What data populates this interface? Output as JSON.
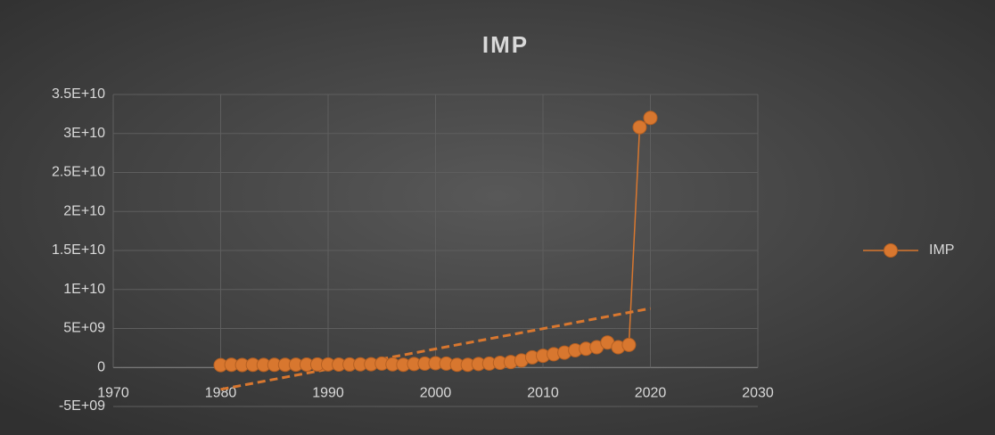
{
  "chart_data": {
    "type": "scatter",
    "title": "IMP",
    "series": [
      {
        "name": "IMP",
        "color": "#d8772f",
        "x": [
          1980,
          1981,
          1982,
          1983,
          1984,
          1985,
          1986,
          1987,
          1988,
          1989,
          1990,
          1991,
          1992,
          1993,
          1994,
          1995,
          1996,
          1997,
          1998,
          1999,
          2000,
          2001,
          2002,
          2003,
          2004,
          2005,
          2006,
          2007,
          2008,
          2009,
          2010,
          2011,
          2012,
          2013,
          2014,
          2015,
          2016,
          2017,
          2018,
          2019,
          2020
        ],
        "values": [
          300000000,
          350000000,
          320000000,
          350000000,
          330000000,
          340000000,
          350000000,
          360000000,
          370000000,
          380000000,
          390000000,
          370000000,
          380000000,
          400000000,
          420000000,
          500000000,
          400000000,
          350000000,
          450000000,
          500000000,
          550000000,
          500000000,
          350000000,
          350000000,
          450000000,
          500000000,
          600000000,
          700000000,
          900000000,
          1300000000,
          1500000000,
          1700000000,
          1900000000,
          2200000000,
          2400000000,
          2600000000,
          3200000000,
          2600000000,
          2900000000,
          30800000000,
          32000000000
        ]
      }
    ],
    "trendline": "linear",
    "xlim": [
      1970,
      2030
    ],
    "xticks": [
      1970,
      1980,
      1990,
      2000,
      2010,
      2020,
      2030
    ],
    "ylim": [
      -5000000000,
      35000000000
    ],
    "yticks": [
      {
        "value": -5000000000,
        "label": "-5E+09"
      },
      0,
      {
        "value": 5000000000,
        "label": "5E+09"
      },
      {
        "value": 10000000000,
        "label": "1E+10"
      },
      {
        "value": 15000000000,
        "label": "1.5E+10"
      },
      {
        "value": 20000000000,
        "label": "2E+10"
      },
      {
        "value": 25000000000,
        "label": "2.5E+10"
      },
      {
        "value": 30000000000,
        "label": "3E+10"
      },
      {
        "value": 35000000000,
        "label": "3.5E+10"
      }
    ],
    "grid": true,
    "legend": "right"
  }
}
